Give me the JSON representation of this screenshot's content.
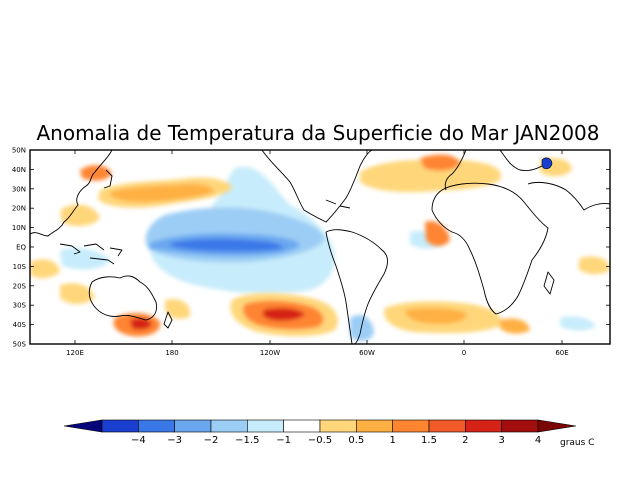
{
  "title": "Anomalia de Temperatura da Superficie do Mar JAN2008",
  "lat_labels": [
    "50N",
    "40N",
    "30N",
    "20N",
    "10N",
    "EQ",
    "10S",
    "20S",
    "30S",
    "40S",
    "50S"
  ],
  "lon_labels": [
    "120E",
    "180",
    "120W",
    "60W",
    "0",
    "60E"
  ],
  "colorbar": {
    "labels": [
      "−4",
      "−3",
      "−2",
      "−1.5",
      "−1",
      "−0.5",
      "0.5",
      "1",
      "1.5",
      "2",
      "3",
      "4"
    ],
    "units": "graus C",
    "colors": [
      "#06067a",
      "#1a3fcf",
      "#3a78e8",
      "#6aa7ef",
      "#9ccdf5",
      "#c7ecfb",
      "#ffffff",
      "#ffd77a",
      "#ffb043",
      "#ff8530",
      "#f35a2a",
      "#d62318",
      "#a20e0e",
      "#7a0606"
    ]
  },
  "anomaly_regions": [
    {
      "name": "equatorial-pacific-cold-tongue",
      "value": "-2"
    },
    {
      "name": "south-pacific-warm-pool",
      "value": "2"
    },
    {
      "name": "north-pacific-warm-band",
      "value": "1"
    },
    {
      "name": "tasman-sea-warm-anomaly",
      "value": "2"
    },
    {
      "name": "north-atlantic-warm-anomaly",
      "value": "1"
    },
    {
      "name": "south-atlantic-warm-band",
      "value": "1"
    }
  ]
}
